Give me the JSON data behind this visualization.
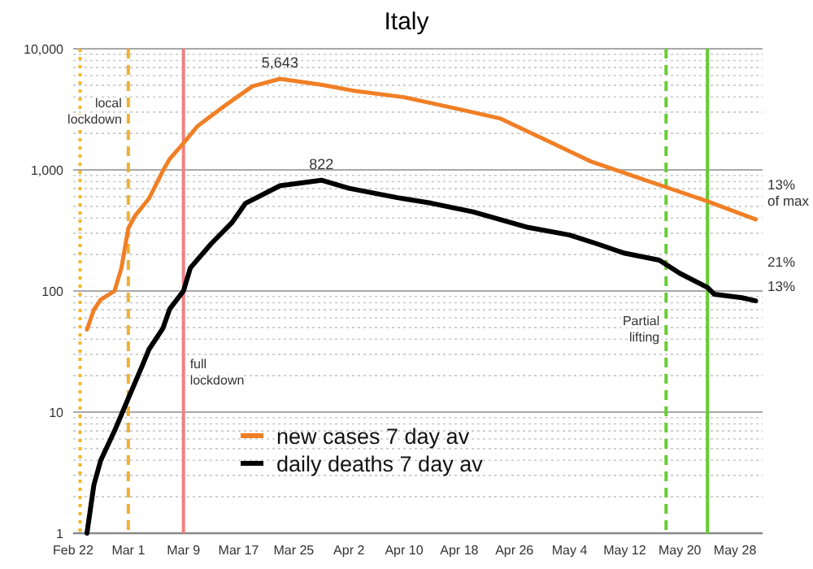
{
  "chart_data": {
    "type": "line",
    "title": "Italy",
    "log": true,
    "grid": "y",
    "legend": "bottom",
    "marker": "none",
    "line_style": "solid",
    "xlim": [
      "--02-22",
      "--06-01"
    ],
    "xticks": [
      {
        "value": "--02-22",
        "label": "Feb 22"
      },
      {
        "value": "--03-01",
        "label": "Mar 1"
      },
      {
        "value": "--03-09",
        "label": "Mar 9"
      },
      {
        "value": "--03-17",
        "label": "Mar 17"
      },
      {
        "value": "--03-25",
        "label": "Mar 25"
      },
      {
        "value": "--04-02",
        "label": "Apr 2"
      },
      {
        "value": "--04-10",
        "label": "Apr 10"
      },
      {
        "value": "--04-18",
        "label": "Apr 18"
      },
      {
        "value": "--04-26",
        "label": "Apr 26"
      },
      {
        "value": "--05-04",
        "label": "May 4"
      },
      {
        "value": "--05-12",
        "label": "May 12"
      },
      {
        "value": "--05-20",
        "label": "May 20"
      },
      {
        "value": "--05-28",
        "label": "May 28"
      }
    ],
    "ylim": [
      1,
      10000
    ],
    "yticks": [
      {
        "value": 1,
        "label": "1"
      },
      {
        "value": 2,
        "label": null
      },
      {
        "value": 3,
        "label": null
      },
      {
        "value": 4,
        "label": null
      },
      {
        "value": 5,
        "label": null
      },
      {
        "value": 6,
        "label": null
      },
      {
        "value": 7,
        "label": null
      },
      {
        "value": 8,
        "label": null
      },
      {
        "value": 9,
        "label": null
      },
      {
        "value": 10,
        "label": "10"
      },
      {
        "value": 20,
        "label": null
      },
      {
        "value": 30,
        "label": null
      },
      {
        "value": 40,
        "label": null
      },
      {
        "value": 50,
        "label": null
      },
      {
        "value": 60,
        "label": null
      },
      {
        "value": 70,
        "label": null
      },
      {
        "value": 80,
        "label": null
      },
      {
        "value": 90,
        "label": null
      },
      {
        "value": 100,
        "label": "100"
      },
      {
        "value": 200,
        "label": null
      },
      {
        "value": 300,
        "label": null
      },
      {
        "value": 400,
        "label": null
      },
      {
        "value": 500,
        "label": null
      },
      {
        "value": 600,
        "label": null
      },
      {
        "value": 700,
        "label": null
      },
      {
        "value": 800,
        "label": null
      },
      {
        "value": 900,
        "label": null
      },
      {
        "value": 1000,
        "label": "1,000"
      },
      {
        "value": 2000,
        "label": null
      },
      {
        "value": 3000,
        "label": null
      },
      {
        "value": 4000,
        "label": null
      },
      {
        "value": 5000,
        "label": null
      },
      {
        "value": 6000,
        "label": null
      },
      {
        "value": 7000,
        "label": null
      },
      {
        "value": 8000,
        "label": null
      },
      {
        "value": 9000,
        "label": null
      },
      {
        "value": 10000,
        "label": "10,000"
      }
    ],
    "series": [
      {
        "name": "new cases 7 day av",
        "color": "#f07f25",
        "x": [
          "--02-24",
          "--02-25",
          "--02-26",
          "--02-28",
          "--02-29",
          "--03-01",
          "--03-02",
          "--03-04",
          "--03-06",
          "--03-07",
          "--03-09",
          "--03-11",
          "--03-15",
          "--03-19",
          "--03-23",
          "--03-29",
          "--04-03",
          "--04-10",
          "--04-18",
          "--04-24",
          "--04-30",
          "--05-07",
          "--05-13",
          "--05-18",
          "--05-24",
          "--05-31"
        ],
        "values": [
          48,
          70,
          85,
          100,
          155,
          330,
          420,
          580,
          980,
          1230,
          1660,
          2290,
          3390,
          4900,
          5643,
          5050,
          4470,
          3980,
          3170,
          2650,
          1830,
          1180,
          900,
          720,
          550,
          390
        ]
      },
      {
        "name": "daily deaths 7 day av",
        "color": "#000000",
        "x": [
          "--02-24",
          "--02-25",
          "--02-26",
          "--02-28",
          "--03-01",
          "--03-03",
          "--03-04",
          "--03-06",
          "--03-07",
          "--03-09",
          "--03-10",
          "--03-13",
          "--03-16",
          "--03-18",
          "--03-23",
          "--03-29",
          "--04-02",
          "--04-09",
          "--04-14",
          "--04-20",
          "--04-28",
          "--05-04",
          "--05-08",
          "--05-12",
          "--05-17",
          "--05-20",
          "--05-24",
          "--05-25",
          "--05-29",
          "--05-31"
        ],
        "values": [
          1,
          2.5,
          4,
          7,
          13,
          24,
          33,
          49,
          71,
          100,
          155,
          245,
          365,
          530,
          740,
          822,
          705,
          590,
          530,
          450,
          335,
          290,
          245,
          205,
          180,
          140,
          107,
          94,
          88,
          83
        ]
      }
    ],
    "ref_lines": [
      {
        "axis": "x",
        "value": "--02-23",
        "color": "#f5b52a",
        "line_style": "dotted"
      },
      {
        "axis": "x",
        "value": "--03-01",
        "label": "local lockdown",
        "color": "#f0b030",
        "line_style": "dashed"
      },
      {
        "axis": "x",
        "value": "--03-09",
        "label": "full lockdown",
        "color": "#f08080",
        "line_style": "solid"
      },
      {
        "axis": "x",
        "value": "--05-18",
        "label": "Partial lifting",
        "color": "#66cc33",
        "line_style": "dashed"
      },
      {
        "axis": "x",
        "value": "--05-24",
        "color": "#66cc33",
        "line_style": "solid"
      }
    ],
    "annotations": [
      {
        "text": "5,643",
        "x": "--03-23",
        "y": 5643
      },
      {
        "text": "822",
        "x": "--03-29",
        "y": 822
      },
      "13% of max",
      "21%",
      "13%"
    ]
  }
}
